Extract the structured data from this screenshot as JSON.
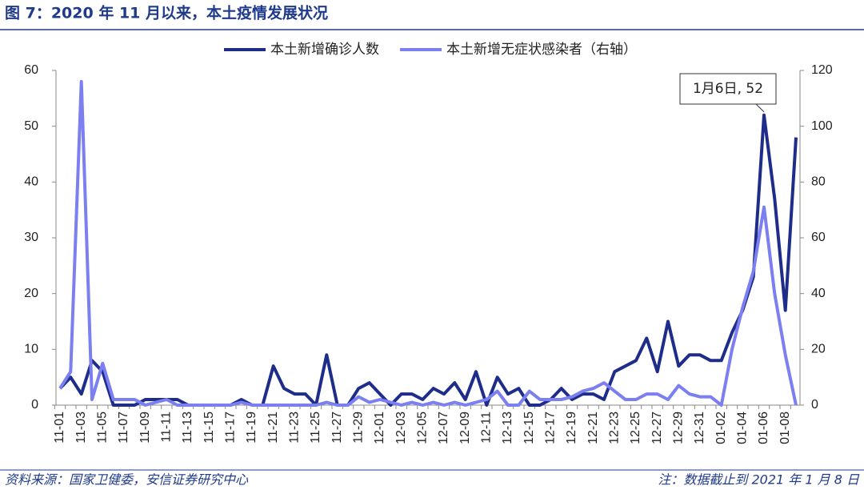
{
  "chart_data": {
    "type": "line",
    "title": "图 7：2020 年 11 月以来，本土疫情发展状况",
    "source": "资料来源：国家卫健委，安信证券研究中心",
    "note": "注：数据截止到 2021 年 1 月 8 日",
    "annotation": "1月6日, 52",
    "categories": [
      "11-01",
      null,
      "11-03",
      null,
      "11-05",
      null,
      "11-07",
      null,
      "11-09",
      null,
      "11-11",
      null,
      "11-13",
      null,
      "11-15",
      null,
      "11-17",
      null,
      "11-19",
      null,
      "11-21",
      null,
      "11-23",
      null,
      "11-25",
      null,
      "11-27",
      null,
      "11-29",
      null,
      "12-01",
      null,
      "12-03",
      null,
      "12-05",
      null,
      "12-07",
      null,
      "12-09",
      null,
      "12-11",
      null,
      "12-13",
      null,
      "12-15",
      null,
      "12-17",
      null,
      "12-19",
      null,
      "12-21",
      null,
      "12-23",
      null,
      "12-25",
      null,
      "12-27",
      null,
      "12-29",
      null,
      "12-31",
      null,
      "01-02",
      null,
      "01-04",
      null,
      "01-06",
      null,
      "01-08",
      null
    ],
    "series": [
      {
        "name": "本土新增确诊人数",
        "color": "#1f2d8a",
        "axis": "y",
        "values": [
          3,
          5,
          2,
          8,
          6,
          0,
          0,
          0,
          1,
          1,
          1,
          1,
          0,
          0,
          0,
          0,
          0,
          1,
          0,
          0,
          7,
          3,
          2,
          2,
          0,
          9,
          0,
          0,
          3,
          4,
          2,
          0,
          2,
          2,
          1,
          3,
          2,
          4,
          1,
          6,
          0,
          5,
          2,
          3,
          0,
          0,
          1,
          3,
          1,
          2,
          2,
          1,
          6,
          7,
          8,
          12,
          6,
          15,
          7,
          9,
          9,
          8,
          8,
          13,
          17,
          23,
          52,
          37,
          17,
          48
        ]
      },
      {
        "name": "本土新增无症状感染者（右轴）",
        "color": "#7b7ff0",
        "axis": "y2",
        "values": [
          6,
          12,
          116,
          2,
          15,
          2,
          2,
          2,
          0,
          1,
          2,
          0,
          0,
          0,
          0,
          0,
          0,
          1,
          0,
          0,
          0,
          0,
          0,
          0,
          0,
          1,
          0,
          0,
          3,
          1,
          2,
          1,
          0,
          1,
          0,
          1,
          0,
          1,
          0,
          1,
          2,
          5,
          0,
          0,
          5,
          2,
          2,
          2,
          3,
          5,
          6,
          8,
          5,
          2,
          2,
          4,
          4,
          2,
          7,
          4,
          3,
          3,
          0,
          20,
          35,
          48,
          71,
          40,
          18,
          0
        ]
      }
    ],
    "ylim": [
      0,
      60
    ],
    "yticks": [
      0,
      10,
      20,
      30,
      40,
      50,
      60
    ],
    "y2lim": [
      0,
      120
    ],
    "y2ticks": [
      0,
      20,
      40,
      60,
      80,
      100,
      120
    ],
    "legend": "top",
    "grid": false
  }
}
